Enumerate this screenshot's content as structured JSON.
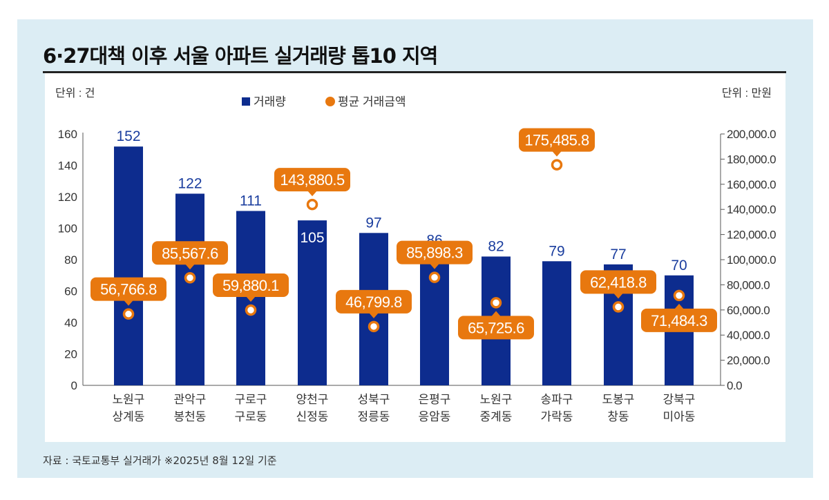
{
  "title": "6·27대책 이후 서울 아파트 실거래량 톱10 지역",
  "source": "자료 : 국토교통부 실거래가  ※2025년 8월 12일 기준",
  "colors": {
    "bar": "#0d2c8e",
    "marker": "#e8780f",
    "bar_label": "#1a3d9e",
    "background": "#dcedf4"
  },
  "chart_data": {
    "type": "bar",
    "categories": [
      "노원구\n상계동",
      "관악구\n봉천동",
      "구로구\n구로동",
      "양천구\n신정동",
      "성북구\n정릉동",
      "은평구\n응암동",
      "노원구\n중계동",
      "송파구\n가락동",
      "도봉구\n창동",
      "강북구\n미아동"
    ],
    "series": [
      {
        "name": "거래량",
        "type": "bar",
        "axis": "left",
        "values": [
          152,
          122,
          111,
          105,
          97,
          86,
          82,
          79,
          77,
          70
        ],
        "labels": [
          "152",
          "122",
          "111",
          "105",
          "97",
          "86",
          "82",
          "79",
          "77",
          "70"
        ]
      },
      {
        "name": "평균 거래금액",
        "type": "scatter",
        "axis": "right",
        "values": [
          56766.8,
          85567.6,
          59880.1,
          143880.5,
          46799.8,
          85898.3,
          65725.6,
          175485.8,
          62418.8,
          71484.3
        ],
        "labels": [
          "56,766.8",
          "85,567.6",
          "59,880.1",
          "143,880.5",
          "46,799.8",
          "85,898.3",
          "65,725.6",
          "175,485.8",
          "62,418.8",
          "71,484.3"
        ]
      }
    ],
    "left_axis": {
      "unit_label": "단위 : 건",
      "ylim": [
        0,
        160
      ],
      "ticks": [
        "0",
        "20",
        "40",
        "60",
        "80",
        "100",
        "120",
        "140",
        "160"
      ]
    },
    "right_axis": {
      "unit_label": "단위 : 만원",
      "ylim": [
        0,
        200000
      ],
      "ticks": [
        "0.0",
        "20,000.0",
        "40,000.0",
        "60,000.0",
        "80,000.0",
        "100,000.0",
        "120,000.0",
        "140,000.0",
        "160,000.0",
        "180,000.0",
        "200,000.0"
      ]
    },
    "legend": {
      "placement": "top-center",
      "items": [
        "거래량",
        "평균 거래금액"
      ]
    },
    "grid": false
  }
}
